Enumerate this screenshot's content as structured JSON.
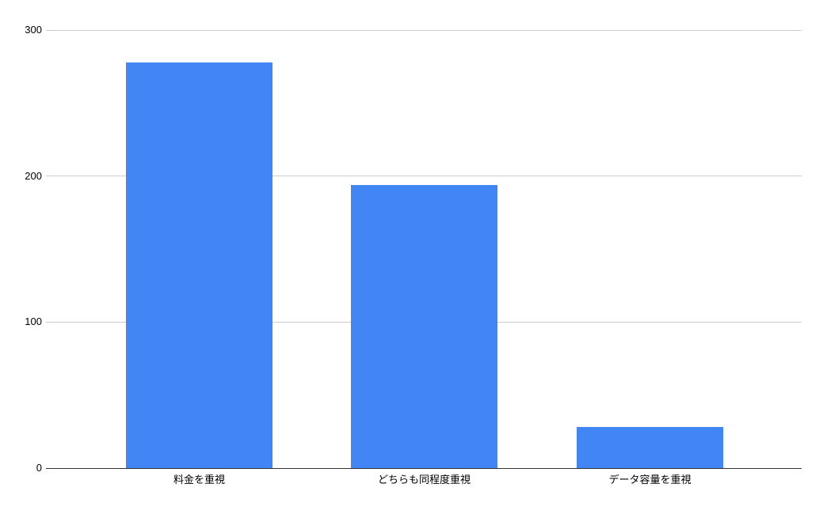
{
  "chart_data": {
    "type": "bar",
    "categories": [
      "料金を重視",
      "どちらも同程度重視",
      "データ容量を重視"
    ],
    "values": [
      278,
      194,
      28
    ],
    "title": "",
    "xlabel": "",
    "ylabel": "",
    "ylim": [
      0,
      300
    ],
    "yticks": [
      0,
      100,
      200,
      300
    ],
    "grid": true,
    "legend_position": "none",
    "bar_color": "#4285f4",
    "gridline_color": "#cccccc",
    "axis_line_color": "#333333",
    "tick_label_color": "#000000"
  }
}
